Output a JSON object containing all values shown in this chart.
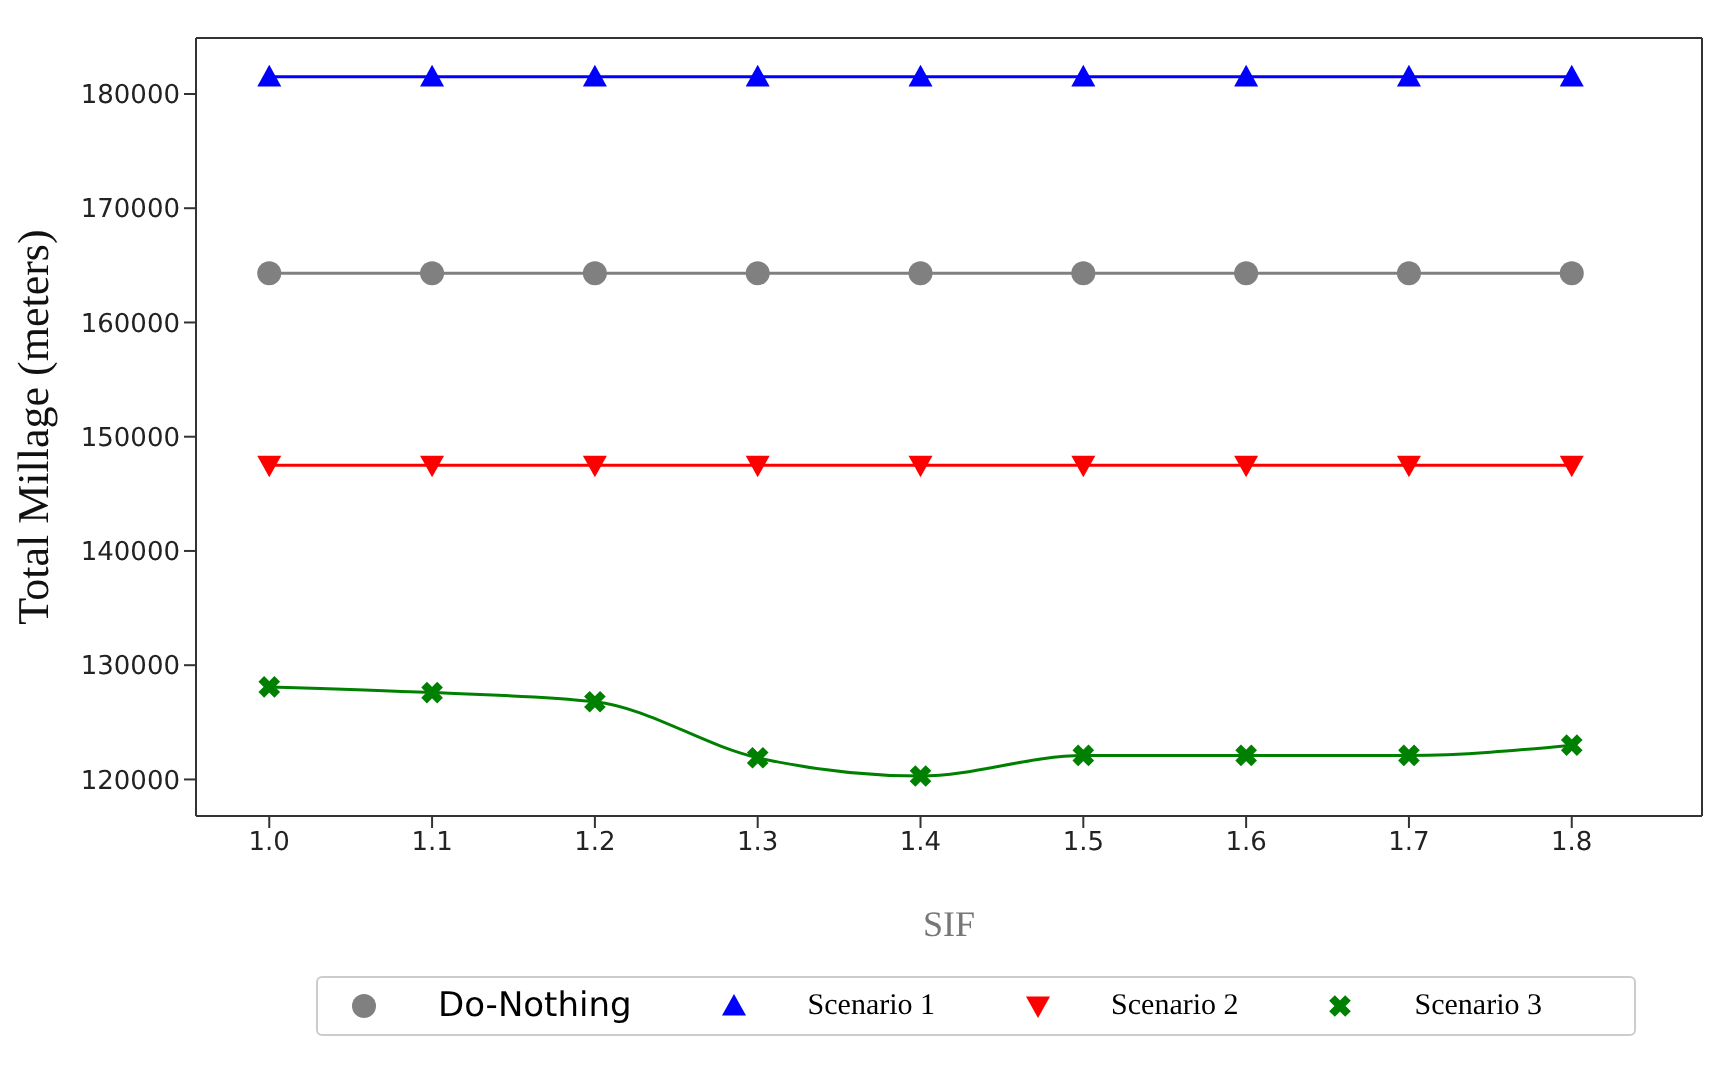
{
  "chart_data": {
    "type": "line",
    "xlabel": "SIF",
    "ylabel": "Total Millage (meters)",
    "x": [
      1.0,
      1.1,
      1.2,
      1.3,
      1.4,
      1.5,
      1.6,
      1.7,
      1.8
    ],
    "xlim": [
      0.955,
      1.88
    ],
    "xticks": [
      {
        "value": 1.0,
        "label": "1.0"
      },
      {
        "value": 1.1,
        "label": "1.1"
      },
      {
        "value": 1.2,
        "label": "1.2"
      },
      {
        "value": 1.3,
        "label": "1.3"
      },
      {
        "value": 1.4,
        "label": "1.4"
      },
      {
        "value": 1.5,
        "label": "1.5"
      },
      {
        "value": 1.6,
        "label": "1.6"
      },
      {
        "value": 1.7,
        "label": "1.7"
      },
      {
        "value": 1.8,
        "label": "1.8"
      }
    ],
    "ylim": [
      116800,
      184900
    ],
    "yticks": [
      120000,
      130000,
      140000,
      150000,
      160000,
      170000,
      180000
    ],
    "series": [
      {
        "name": "Do-Nothing",
        "color": "#808080",
        "marker": "circle",
        "values": [
          164300,
          164300,
          164300,
          164300,
          164300,
          164300,
          164300,
          164300,
          164300
        ]
      },
      {
        "name": "Scenario 1",
        "color": "#0000ff",
        "marker": "triangle",
        "values": [
          181500,
          181500,
          181500,
          181500,
          181500,
          181500,
          181500,
          181500,
          181500
        ]
      },
      {
        "name": "Scenario 2",
        "color": "#ff0000",
        "marker": "triangle-down",
        "values": [
          147500,
          147500,
          147500,
          147500,
          147500,
          147500,
          147500,
          147500,
          147500
        ]
      },
      {
        "name": "Scenario 3",
        "color": "#008000",
        "marker": "cross",
        "values": [
          128100,
          127600,
          126800,
          121900,
          120300,
          122100,
          122100,
          122100,
          123000
        ]
      }
    ],
    "legend": "bottom"
  }
}
